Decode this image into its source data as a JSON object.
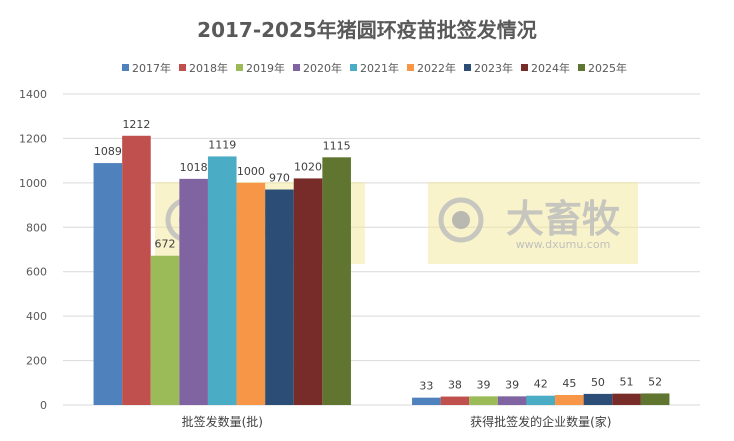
{
  "chart_data": {
    "type": "bar",
    "title": "2017-2025年猪圆环疫苗批签发情况",
    "categories": [
      "批签发数量(批)",
      "获得批签发的企业数量(家)"
    ],
    "series": [
      {
        "name": "2017年",
        "color": "#4F81BD",
        "values": [
          1089,
          33
        ]
      },
      {
        "name": "2018年",
        "color": "#C0504D",
        "values": [
          1212,
          38
        ]
      },
      {
        "name": "2019年",
        "color": "#9BBB59",
        "values": [
          672,
          39
        ]
      },
      {
        "name": "2020年",
        "color": "#8064A2",
        "values": [
          1018,
          39
        ]
      },
      {
        "name": "2021年",
        "color": "#4BACC6",
        "values": [
          1119,
          42
        ]
      },
      {
        "name": "2022年",
        "color": "#F79646",
        "values": [
          1000,
          45
        ]
      },
      {
        "name": "2023年",
        "color": "#2C4D75",
        "values": [
          970,
          50
        ]
      },
      {
        "name": "2024年",
        "color": "#772C2A",
        "values": [
          1020,
          51
        ]
      },
      {
        "name": "2025年",
        "color": "#5F7530",
        "values": [
          1115,
          52
        ]
      }
    ],
    "ylim": [
      0,
      1400
    ],
    "yticks": [
      "0",
      "200",
      "400",
      "600",
      "800",
      "1000",
      "1200",
      "1400"
    ],
    "grid": true,
    "legend": "top",
    "xlabel": "",
    "ylabel": ""
  },
  "watermark": {
    "brand": "大畜牧",
    "url": "www.dxumu.com"
  }
}
